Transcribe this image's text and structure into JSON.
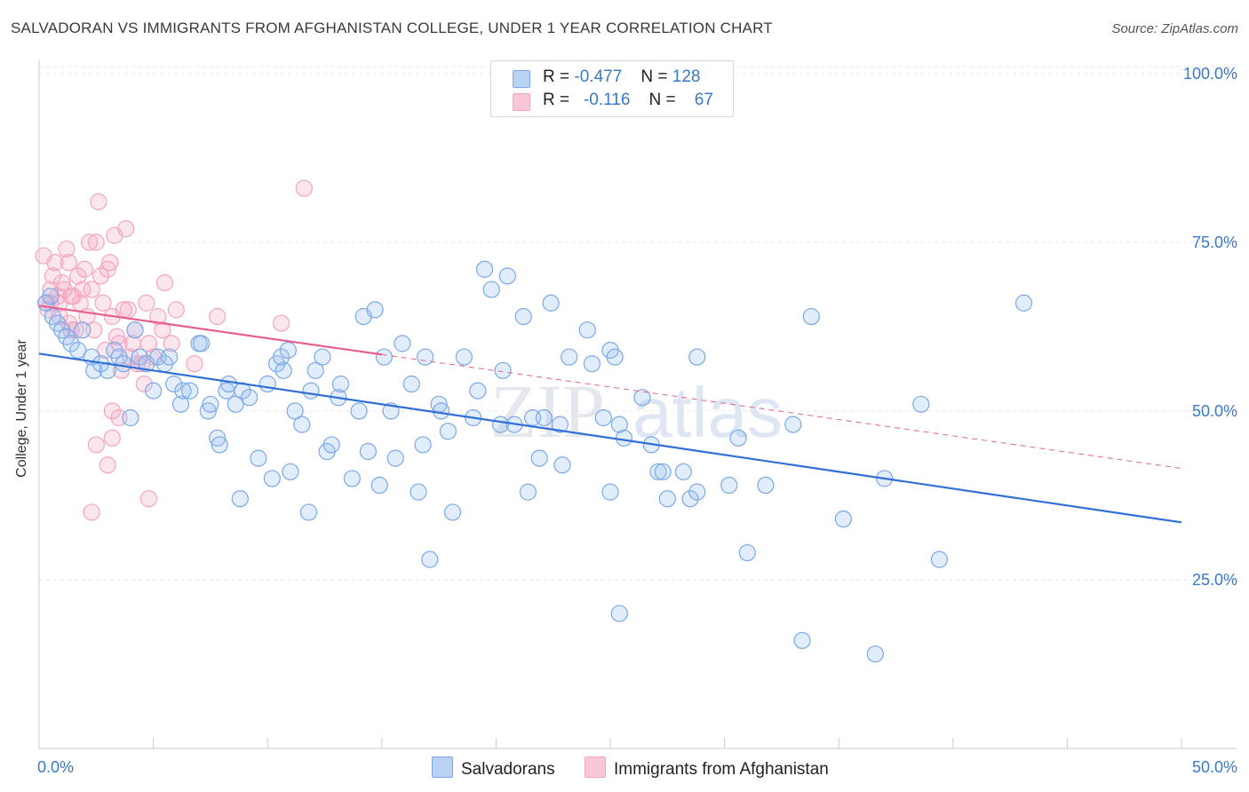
{
  "title": "SALVADORAN VS IMMIGRANTS FROM AFGHANISTAN COLLEGE, UNDER 1 YEAR CORRELATION CHART",
  "source": "Source: ZipAtlas.com",
  "watermark": {
    "zip": "ZIP",
    "atlas": "atlas"
  },
  "legend": {
    "r_label": "R =",
    "n_label": "N =",
    "salvadorans": {
      "r": "-0.477",
      "n": "128"
    },
    "afghanistan": {
      "r": "-0.116",
      "n": "67"
    }
  },
  "chart_data": {
    "type": "scatter",
    "title": "SALVADORAN VS IMMIGRANTS FROM AFGHANISTAN COLLEGE, UNDER 1 YEAR CORRELATION CHART",
    "xlabel": "",
    "ylabel": "College, Under 1 year",
    "xlim": [
      0,
      50
    ],
    "ylim": [
      0,
      103
    ],
    "x_tick_labels": [
      "0.0%",
      "50.0%"
    ],
    "y_ticks": [
      25,
      50,
      75,
      100
    ],
    "y_tick_labels": [
      "25.0%",
      "50.0%",
      "75.0%",
      "100.0%"
    ],
    "grid": true,
    "series": [
      {
        "name": "Salvadorans",
        "color": "#7aa8e8",
        "line_color": "#2f6fd6",
        "trend": {
          "x": [
            0,
            50
          ],
          "y": [
            58.5,
            33.5
          ],
          "dashed_from": null
        },
        "points": [
          [
            0.3,
            66
          ],
          [
            0.5,
            67
          ],
          [
            0.6,
            64
          ],
          [
            0.8,
            63
          ],
          [
            1.0,
            62
          ],
          [
            1.2,
            61
          ],
          [
            1.4,
            60
          ],
          [
            1.7,
            59
          ],
          [
            1.9,
            62
          ],
          [
            2.3,
            58
          ],
          [
            2.4,
            56
          ],
          [
            2.7,
            57
          ],
          [
            3.0,
            56
          ],
          [
            3.3,
            59
          ],
          [
            3.5,
            58
          ],
          [
            3.7,
            57
          ],
          [
            4.0,
            49
          ],
          [
            4.2,
            62
          ],
          [
            4.4,
            58
          ],
          [
            4.7,
            57
          ],
          [
            5.0,
            53
          ],
          [
            5.2,
            58
          ],
          [
            5.5,
            57
          ],
          [
            5.7,
            58
          ],
          [
            5.9,
            54
          ],
          [
            6.2,
            51
          ],
          [
            6.3,
            53
          ],
          [
            6.6,
            53
          ],
          [
            7.0,
            60
          ],
          [
            7.1,
            60
          ],
          [
            7.4,
            50
          ],
          [
            7.5,
            51
          ],
          [
            7.8,
            46
          ],
          [
            7.9,
            45
          ],
          [
            8.2,
            53
          ],
          [
            8.3,
            54
          ],
          [
            8.6,
            51
          ],
          [
            8.9,
            53
          ],
          [
            9.2,
            52
          ],
          [
            8.8,
            37
          ],
          [
            9.6,
            43
          ],
          [
            10.0,
            54
          ],
          [
            10.2,
            40
          ],
          [
            10.4,
            57
          ],
          [
            10.6,
            58
          ],
          [
            10.7,
            56
          ],
          [
            10.9,
            59
          ],
          [
            11.0,
            41
          ],
          [
            11.2,
            50
          ],
          [
            11.5,
            48
          ],
          [
            11.9,
            53
          ],
          [
            11.8,
            35
          ],
          [
            12.1,
            56
          ],
          [
            12.4,
            58
          ],
          [
            12.6,
            44
          ],
          [
            12.8,
            45
          ],
          [
            13.1,
            52
          ],
          [
            13.2,
            54
          ],
          [
            13.7,
            40
          ],
          [
            14.0,
            50
          ],
          [
            14.2,
            64
          ],
          [
            14.4,
            44
          ],
          [
            14.7,
            65
          ],
          [
            14.9,
            39
          ],
          [
            15.1,
            58
          ],
          [
            15.4,
            50
          ],
          [
            15.6,
            43
          ],
          [
            15.9,
            60
          ],
          [
            16.3,
            54
          ],
          [
            16.6,
            38
          ],
          [
            16.8,
            45
          ],
          [
            16.9,
            58
          ],
          [
            17.1,
            28
          ],
          [
            17.5,
            51
          ],
          [
            17.6,
            50
          ],
          [
            17.9,
            47
          ],
          [
            18.1,
            35
          ],
          [
            18.6,
            58
          ],
          [
            19.0,
            49
          ],
          [
            19.2,
            53
          ],
          [
            19.5,
            71
          ],
          [
            19.8,
            68
          ],
          [
            20.2,
            48
          ],
          [
            20.3,
            56
          ],
          [
            20.5,
            70
          ],
          [
            20.8,
            48
          ],
          [
            21.2,
            64
          ],
          [
            21.4,
            38
          ],
          [
            21.6,
            49
          ],
          [
            21.9,
            43
          ],
          [
            22.1,
            49
          ],
          [
            22.4,
            66
          ],
          [
            22.8,
            48
          ],
          [
            22.9,
            42
          ],
          [
            23.2,
            58
          ],
          [
            24.0,
            62
          ],
          [
            24.2,
            57
          ],
          [
            24.7,
            49
          ],
          [
            25.0,
            59
          ],
          [
            25.2,
            58
          ],
          [
            25.4,
            48
          ],
          [
            25.6,
            46
          ],
          [
            26.4,
            52
          ],
          [
            25.0,
            38
          ],
          [
            26.8,
            45
          ],
          [
            27.1,
            41
          ],
          [
            27.3,
            41
          ],
          [
            27.5,
            37
          ],
          [
            28.2,
            41
          ],
          [
            28.5,
            37
          ],
          [
            28.8,
            38
          ],
          [
            28.8,
            58
          ],
          [
            30.2,
            39
          ],
          [
            30.6,
            46
          ],
          [
            31.0,
            29
          ],
          [
            31.8,
            39
          ],
          [
            33.0,
            48
          ],
          [
            33.8,
            64
          ],
          [
            33.4,
            16
          ],
          [
            35.2,
            34
          ],
          [
            25.4,
            20
          ],
          [
            36.6,
            14
          ],
          [
            37.0,
            40
          ],
          [
            38.6,
            51
          ],
          [
            39.4,
            28
          ],
          [
            43.1,
            66
          ]
        ]
      },
      {
        "name": "Immigrants from Afghanistan",
        "color": "#f4a5be",
        "line_color": "#e8608e",
        "trend": {
          "x": [
            0,
            50
          ],
          "y": [
            65.6,
            41.5
          ],
          "solid_until": 15
        },
        "points": [
          [
            0.2,
            73
          ],
          [
            0.3,
            66
          ],
          [
            0.4,
            65
          ],
          [
            0.5,
            68
          ],
          [
            0.6,
            70
          ],
          [
            0.7,
            72
          ],
          [
            0.8,
            67
          ],
          [
            0.9,
            66
          ],
          [
            1.0,
            69
          ],
          [
            1.1,
            68
          ],
          [
            1.2,
            74
          ],
          [
            1.3,
            72
          ],
          [
            1.4,
            67
          ],
          [
            1.5,
            67
          ],
          [
            1.6,
            62
          ],
          [
            1.7,
            70
          ],
          [
            1.8,
            66
          ],
          [
            1.9,
            68
          ],
          [
            2.0,
            71
          ],
          [
            2.1,
            64
          ],
          [
            2.2,
            75
          ],
          [
            2.3,
            68
          ],
          [
            2.4,
            62
          ],
          [
            2.5,
            75
          ],
          [
            2.6,
            81
          ],
          [
            2.7,
            70
          ],
          [
            2.8,
            66
          ],
          [
            2.9,
            59
          ],
          [
            3.0,
            71
          ],
          [
            3.1,
            72
          ],
          [
            3.2,
            64
          ],
          [
            3.3,
            76
          ],
          [
            3.4,
            61
          ],
          [
            3.5,
            60
          ],
          [
            3.6,
            56
          ],
          [
            3.7,
            65
          ],
          [
            3.8,
            77
          ],
          [
            3.9,
            65
          ],
          [
            4.0,
            58
          ],
          [
            4.1,
            60
          ],
          [
            4.2,
            62
          ],
          [
            4.3,
            57
          ],
          [
            4.5,
            57
          ],
          [
            4.7,
            66
          ],
          [
            4.8,
            60
          ],
          [
            5.0,
            58
          ],
          [
            5.2,
            64
          ],
          [
            5.4,
            62
          ],
          [
            5.5,
            69
          ],
          [
            5.8,
            60
          ],
          [
            6.0,
            65
          ],
          [
            4.6,
            54
          ],
          [
            3.2,
            50
          ],
          [
            3.5,
            49
          ],
          [
            3.2,
            46
          ],
          [
            3.0,
            42
          ],
          [
            2.5,
            45
          ],
          [
            2.3,
            35
          ],
          [
            4.8,
            37
          ],
          [
            7.8,
            64
          ],
          [
            10.6,
            63
          ],
          [
            11.6,
            83
          ],
          [
            6.8,
            57
          ],
          [
            1.3,
            63
          ],
          [
            0.9,
            64
          ],
          [
            1.4,
            62
          ],
          [
            0.5,
            66
          ]
        ]
      }
    ]
  },
  "bottom_legend": {
    "salvadorans": "Salvadorans",
    "afghanistan": "Immigrants from Afghanistan"
  }
}
